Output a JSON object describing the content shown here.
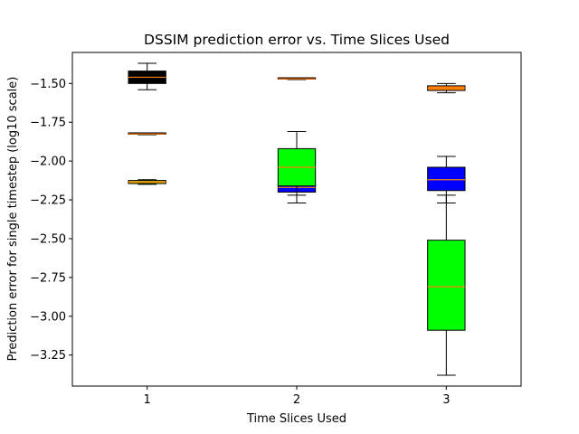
{
  "chart_data": {
    "type": "box",
    "title": "DSSIM prediction error vs. Time Slices Used",
    "xlabel": "Time Slices Used",
    "ylabel": "Prediction error for single timestep (log10 scale)",
    "categories": [
      "1",
      "2",
      "3"
    ],
    "ylim": [
      -3.45,
      -1.3
    ],
    "yticks": [
      -1.5,
      -1.75,
      -2.0,
      -2.25,
      -2.5,
      -2.75,
      -3.0,
      -3.25
    ],
    "ytick_labels": [
      "−1.50",
      "−1.75",
      "−2.00",
      "−2.25",
      "−2.50",
      "−2.75",
      "−3.00",
      "−3.25"
    ],
    "grid": false,
    "boxes": [
      {
        "category": "1",
        "color": "#000000",
        "whislo": -1.54,
        "q1": -1.5,
        "median": -1.46,
        "q3": -1.42,
        "whishi": -1.37
      },
      {
        "category": "1",
        "color": "#000000",
        "whislo": -1.83,
        "q1": -1.827,
        "median": -1.825,
        "q3": -1.823,
        "whishi": -1.82
      },
      {
        "category": "1",
        "color": "#c8c800",
        "whislo": -2.15,
        "q1": -2.145,
        "median": -2.135,
        "q3": -2.125,
        "whishi": -2.12
      },
      {
        "category": "2",
        "color": "#ff0000",
        "whislo": -1.475,
        "q1": -1.472,
        "median": -1.47,
        "q3": -1.468,
        "whishi": -1.465
      },
      {
        "category": "2",
        "color": "#0000ff",
        "whislo": -2.22,
        "q1": -2.2,
        "median": -2.17,
        "q3": -2.15,
        "whishi": -2.12
      },
      {
        "category": "2",
        "color": "#00ff00",
        "whislo": -2.27,
        "q1": -2.16,
        "median": -2.04,
        "q3": -1.92,
        "whishi": -1.81
      },
      {
        "category": "3",
        "color": "#ff8000",
        "whislo": -1.56,
        "q1": -1.545,
        "median": -1.53,
        "q3": -1.515,
        "whishi": -1.5
      },
      {
        "category": "3",
        "color": "#0000ff",
        "whislo": -2.27,
        "q1": -2.19,
        "median": -2.12,
        "q3": -2.04,
        "whishi": -1.97
      },
      {
        "category": "3",
        "color": "#00ff00",
        "whislo": -3.38,
        "q1": -3.09,
        "median": -2.81,
        "q3": -2.51,
        "whishi": -2.22
      }
    ],
    "median_color": "#ff7f0e"
  }
}
